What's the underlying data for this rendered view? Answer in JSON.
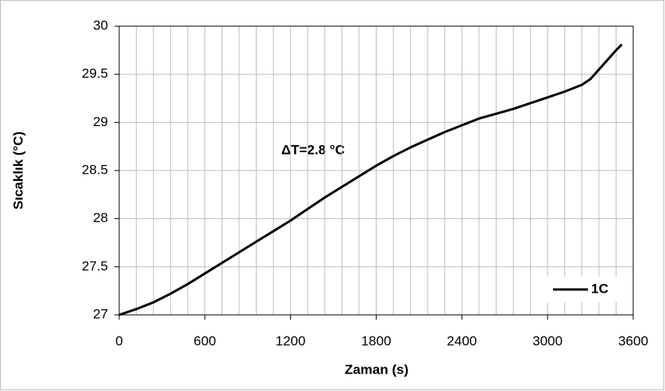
{
  "chart_data": {
    "type": "line",
    "x_label": "Zaman (s)",
    "y_label": "Sıcaklık (°C)",
    "annotation": "ΔT=2.8 °C",
    "x": [
      0,
      120,
      240,
      360,
      480,
      600,
      720,
      840,
      960,
      1080,
      1200,
      1320,
      1440,
      1560,
      1680,
      1800,
      1920,
      2040,
      2160,
      2280,
      2400,
      2520,
      2640,
      2760,
      2880,
      3000,
      3120,
      3240,
      3300,
      3360,
      3420,
      3480,
      3520
    ],
    "series": [
      {
        "name": "1C",
        "color": "#000000",
        "values": [
          27.0,
          27.06,
          27.13,
          27.22,
          27.32,
          27.43,
          27.54,
          27.65,
          27.76,
          27.87,
          27.98,
          28.1,
          28.22,
          28.33,
          28.44,
          28.55,
          28.65,
          28.74,
          28.82,
          28.9,
          28.97,
          29.04,
          29.09,
          29.14,
          29.2,
          29.26,
          29.32,
          29.39,
          29.45,
          29.55,
          29.65,
          29.75,
          29.81
        ]
      }
    ],
    "xlim": [
      0,
      3600
    ],
    "xticks": [
      0,
      600,
      1200,
      1800,
      2400,
      3000,
      3600
    ],
    "ylim": [
      27,
      30
    ],
    "yticks": [
      27,
      {
        "value": 27.5,
        "label": "27.5"
      },
      28,
      {
        "value": 28.5,
        "label": "28.5"
      },
      29,
      {
        "value": 29.5,
        "label": "29.5"
      },
      30
    ],
    "x_grid_step": 120,
    "grid": true,
    "legend": "lower right"
  }
}
